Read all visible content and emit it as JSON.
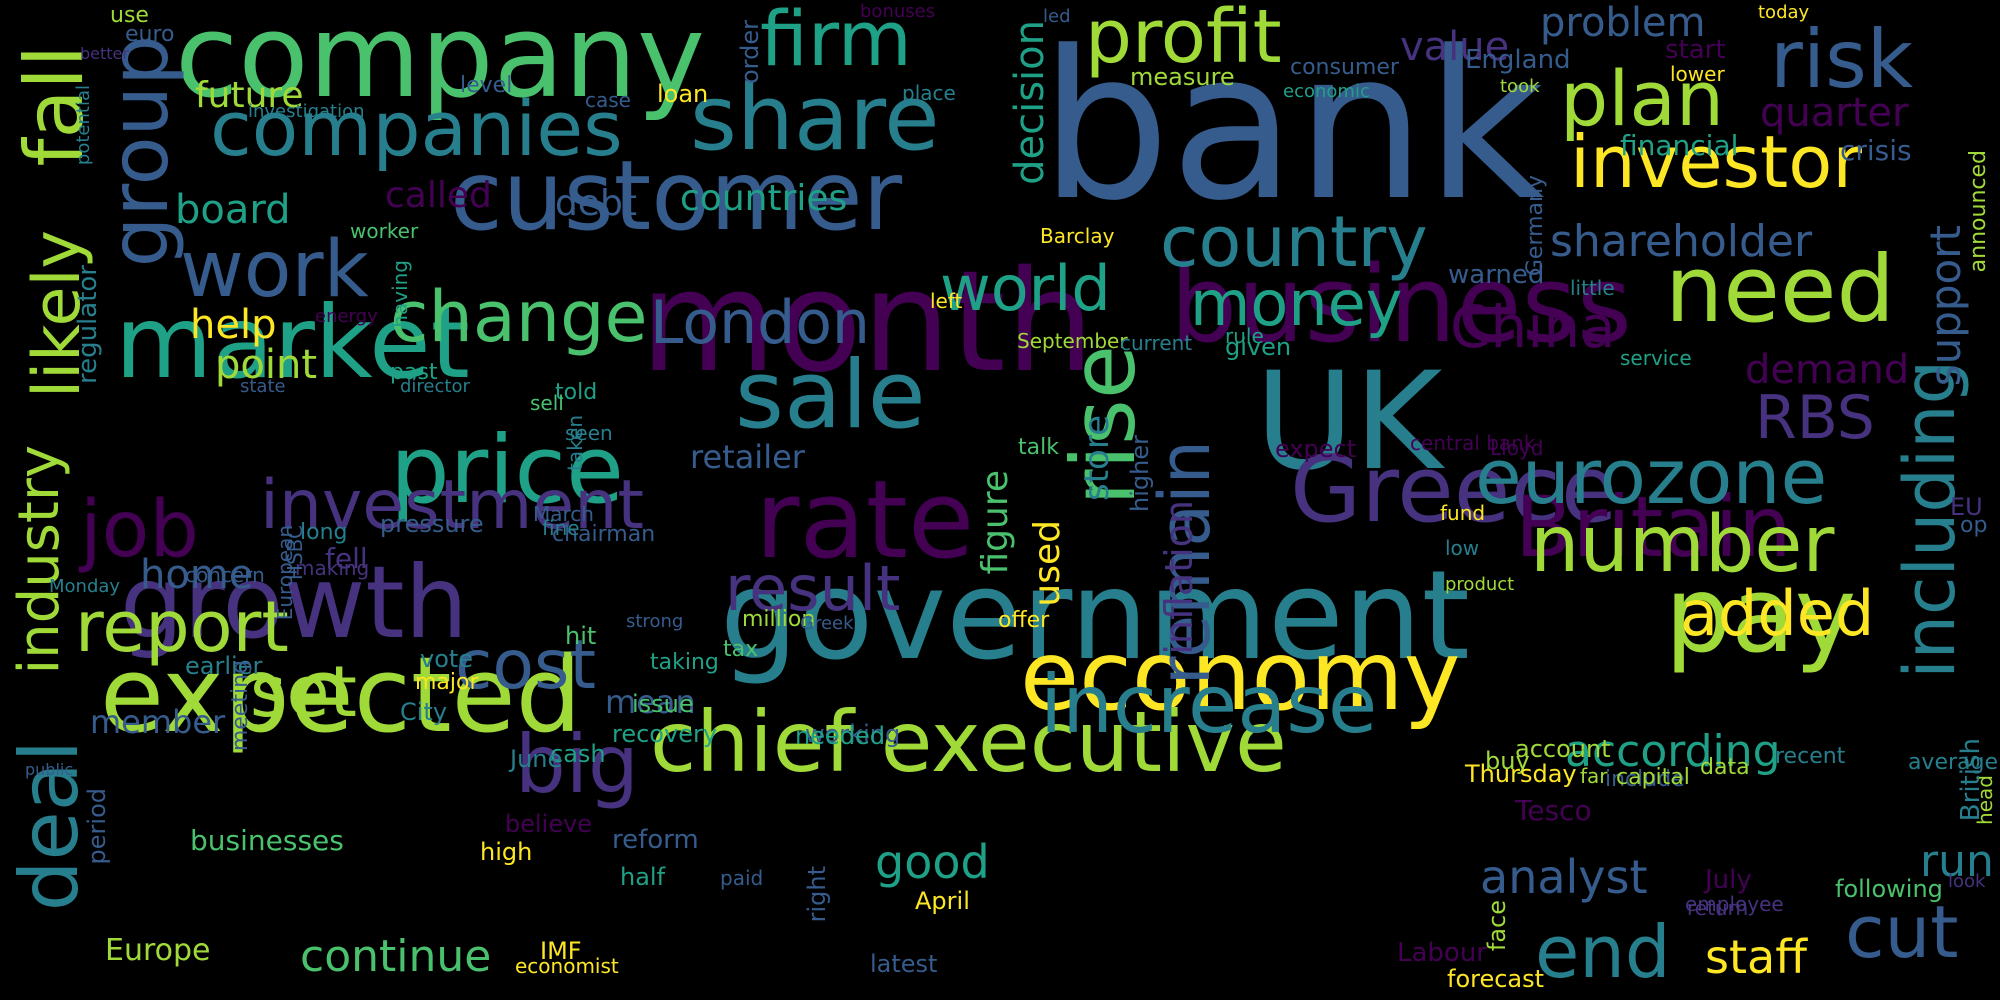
{
  "colors": {
    "background": "#000000",
    "palette": [
      "#440154",
      "#46327e",
      "#365c8d",
      "#277f8e",
      "#1fa187",
      "#4ac16d",
      "#a0da39",
      "#fde725"
    ]
  },
  "words": [
    "bank",
    "month",
    "UK",
    "government",
    "company",
    "business",
    "customer",
    "market",
    "rate",
    "economy",
    "chief executive",
    "Greece",
    "growth",
    "price",
    "expected",
    "pay",
    "share",
    "companies",
    "investor",
    "need",
    "including",
    "sale",
    "Britain",
    "rise",
    "increase",
    "eurozone",
    "number",
    "group",
    "fall",
    "deal",
    "likely",
    "industry",
    "firm",
    "profit",
    "risk",
    "plan",
    "country",
    "big",
    "job",
    "work",
    "change",
    "investment",
    "cost",
    "result",
    "report",
    "set",
    "remain",
    "added",
    "end",
    "cut",
    "London",
    "China",
    "money",
    "world",
    "RBS",
    "support",
    "shareholder",
    "decision",
    "store",
    "figure",
    "used",
    "inflation",
    "continue",
    "good",
    "analyst",
    "staff",
    "run",
    "according",
    "future",
    "board",
    "help",
    "point",
    "debt",
    "countries",
    "called",
    "value",
    "problem",
    "quarter",
    "demand",
    "home",
    "retailer",
    "mean",
    "member",
    "businesses",
    "Europe",
    "Tesco",
    "regulator",
    "use",
    "euro",
    "better",
    "investigation",
    "level",
    "case",
    "loan",
    "place",
    "order",
    "bonuses",
    "led",
    "today",
    "England",
    "start",
    "lower",
    "economic",
    "took",
    "measure",
    "consumer",
    "financial",
    "crisis",
    "announced",
    "Germany",
    "potential",
    "worker",
    "having",
    "energy",
    "Barclay",
    "left",
    "September",
    "current",
    "rule",
    "given",
    "little",
    "service",
    "warned",
    "state",
    "director",
    "past",
    "told",
    "sell",
    "seen",
    "taken",
    "higher",
    "expect",
    "central bank",
    "Lloyd",
    "talk",
    "op",
    "EU",
    "fund",
    "low",
    "product",
    "long",
    "pressure",
    "making",
    "chairman",
    "March",
    "fine",
    "HSBC",
    "fell",
    "European",
    "concern",
    "Monday",
    "million",
    "Greek",
    "offer",
    "strong",
    "tax",
    "hit",
    "taking",
    "earlier",
    "vote",
    "meeting",
    "major",
    "City",
    "recovery",
    "issue",
    "working",
    "needed",
    "cash",
    "June",
    "account",
    "far",
    "buy",
    "average",
    "recent",
    "Thursday",
    "include",
    "capital",
    "data",
    "head",
    "British",
    "public",
    "period",
    "believe",
    "reform",
    "high",
    "half",
    "paid",
    "right",
    "April",
    "July",
    "following",
    "look",
    "return",
    "employee",
    "face",
    "IMF",
    "economist",
    "latest",
    "Labour",
    "forecast"
  ]
}
